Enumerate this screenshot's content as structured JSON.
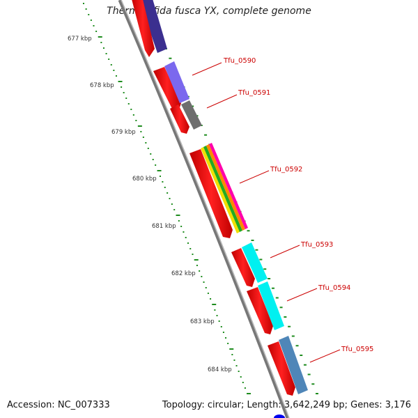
{
  "title": "Thermobifida fusca YX, complete genome",
  "accession": "Accession: NC_007333",
  "summary": "Topology: circular; Length: 3,642,249 bp; Genes: 3,176",
  "ticks": [
    "677 kbp",
    "678 kbp",
    "679 kbp",
    "680 kbp",
    "681 kbp",
    "682 kbp",
    "683 kbp",
    "684 kbp"
  ],
  "gene_labels": [
    "Tfu_0590",
    "Tfu_0591",
    "Tfu_0592",
    "Tfu_0593",
    "Tfu_0594",
    "Tfu_0595"
  ],
  "colors": {
    "cds": "#ff0000",
    "backbone": "#888888",
    "tick": "#1e8c1e",
    "label": "#cc0000",
    "Tfu_0590": "#7b68ee",
    "Tfu_0591": "#6e6e6e",
    "Tfu_0593": "#00f0f0",
    "Tfu_0594": "#00f0f0",
    "Tfu_0595": "#4f86b8",
    "top_feature": "#3b2f8f"
  }
}
